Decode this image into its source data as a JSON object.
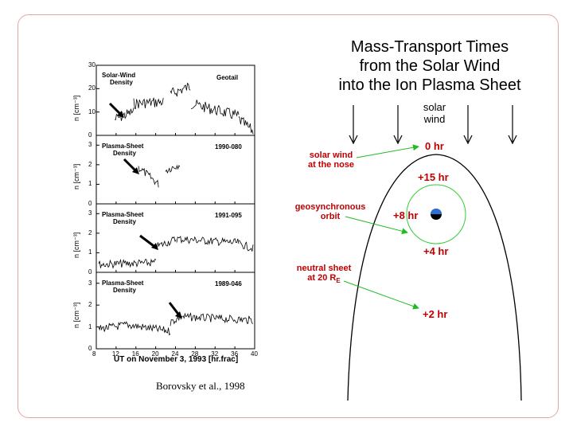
{
  "title": {
    "line1": "Mass-Transport Times",
    "line2": "from the Solar Wind",
    "line3": "into the Ion Plasma Sheet"
  },
  "citation": "Borovsky et al., 1998",
  "plots": {
    "x_axis": {
      "label": "UT on November 3, 1993   [hr.frac]",
      "ticks": [
        "8",
        "12",
        "16",
        "20",
        "24",
        "28",
        "32",
        "36",
        "40"
      ],
      "range": [
        8,
        40
      ]
    },
    "panels": [
      {
        "label_line1": "Solar-Wind",
        "label_line2": "Density",
        "id": "Geotail",
        "ylabel": "n  [cm⁻³]",
        "yticks": [
          "0",
          "10",
          "20",
          "30"
        ],
        "yrange": [
          0,
          30
        ]
      },
      {
        "label_line1": "Plasma-Sheet",
        "label_line2": "Density",
        "id": "1990-080",
        "ylabel": "n  [cm⁻³]",
        "yticks": [
          "0",
          "1",
          "2",
          "3"
        ],
        "yrange": [
          0,
          3.5
        ]
      },
      {
        "label_line1": "Plasma-Sheet",
        "label_line2": "Density",
        "id": "1991-095",
        "ylabel": "n  [cm⁻³]",
        "yticks": [
          "0",
          "1",
          "2",
          "3"
        ],
        "yrange": [
          0,
          3.5
        ]
      },
      {
        "label_line1": "Plasma-Sheet",
        "label_line2": "Density",
        "id": "1989-046",
        "ylabel": "n  [cm⁻³]",
        "yticks": [
          "0",
          "1",
          "2",
          "3"
        ],
        "yrange": [
          0,
          3.5
        ]
      }
    ]
  },
  "diagram": {
    "solar_wind_line1": "solar",
    "solar_wind_line2": "wind",
    "note_nose_line1": "solar wind",
    "note_nose_line2": "at the nose",
    "note_geo_line1": "geosynchronous",
    "note_geo_line2": "orbit",
    "note_neutral_line1": "neutral sheet",
    "note_neutral_line2": "at 20 R",
    "note_neutral_sub": "E",
    "time_0": "0 hr",
    "time_15": "+15 hr",
    "time_8": "+8 hr",
    "time_4": "+4 hr",
    "time_2": "+2 hr"
  },
  "colors": {
    "accent_red": "#c00000",
    "arrow_green": "#22bb22",
    "border": "#e6a6a6",
    "orbit_green": "#33cc33"
  }
}
